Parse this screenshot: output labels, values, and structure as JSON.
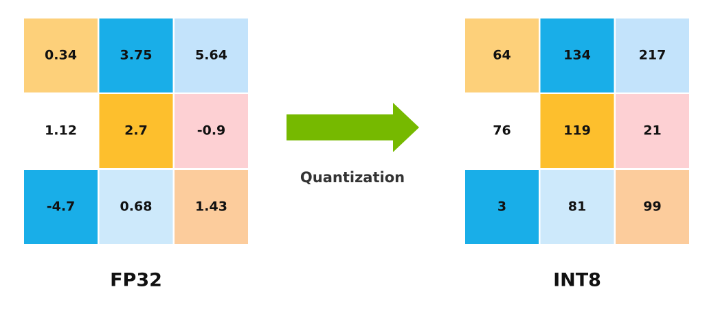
{
  "grids": [
    {
      "label": "FP32",
      "cells": [
        [
          {
            "value": "0.34",
            "color": "#fdd07a"
          },
          {
            "value": "3.75",
            "color": "#19aee8"
          },
          {
            "value": "5.64",
            "color": "#c3e3fb"
          }
        ],
        [
          {
            "value": "1.12",
            "color": "#ffffff"
          },
          {
            "value": "2.7",
            "color": "#fdbf2d"
          },
          {
            "value": "-0.9",
            "color": "#fdd0d3"
          }
        ],
        [
          {
            "value": "-4.7",
            "color": "#19aee8"
          },
          {
            "value": "0.68",
            "color": "#cde9fb"
          },
          {
            "value": "1.43",
            "color": "#fccc9c"
          }
        ]
      ]
    },
    {
      "label": "INT8",
      "cells": [
        [
          {
            "value": "64",
            "color": "#fdd07a"
          },
          {
            "value": "134",
            "color": "#19aee8"
          },
          {
            "value": "217",
            "color": "#c3e3fb"
          }
        ],
        [
          {
            "value": "76",
            "color": "#ffffff"
          },
          {
            "value": "119",
            "color": "#fdbf2d"
          },
          {
            "value": "21",
            "color": "#fdd0d3"
          }
        ],
        [
          {
            "value": "3",
            "color": "#19aee8"
          },
          {
            "value": "81",
            "color": "#cde9fb"
          },
          {
            "value": "99",
            "color": "#fccc9c"
          }
        ]
      ]
    }
  ],
  "arrow": {
    "label": "Quantization"
  }
}
